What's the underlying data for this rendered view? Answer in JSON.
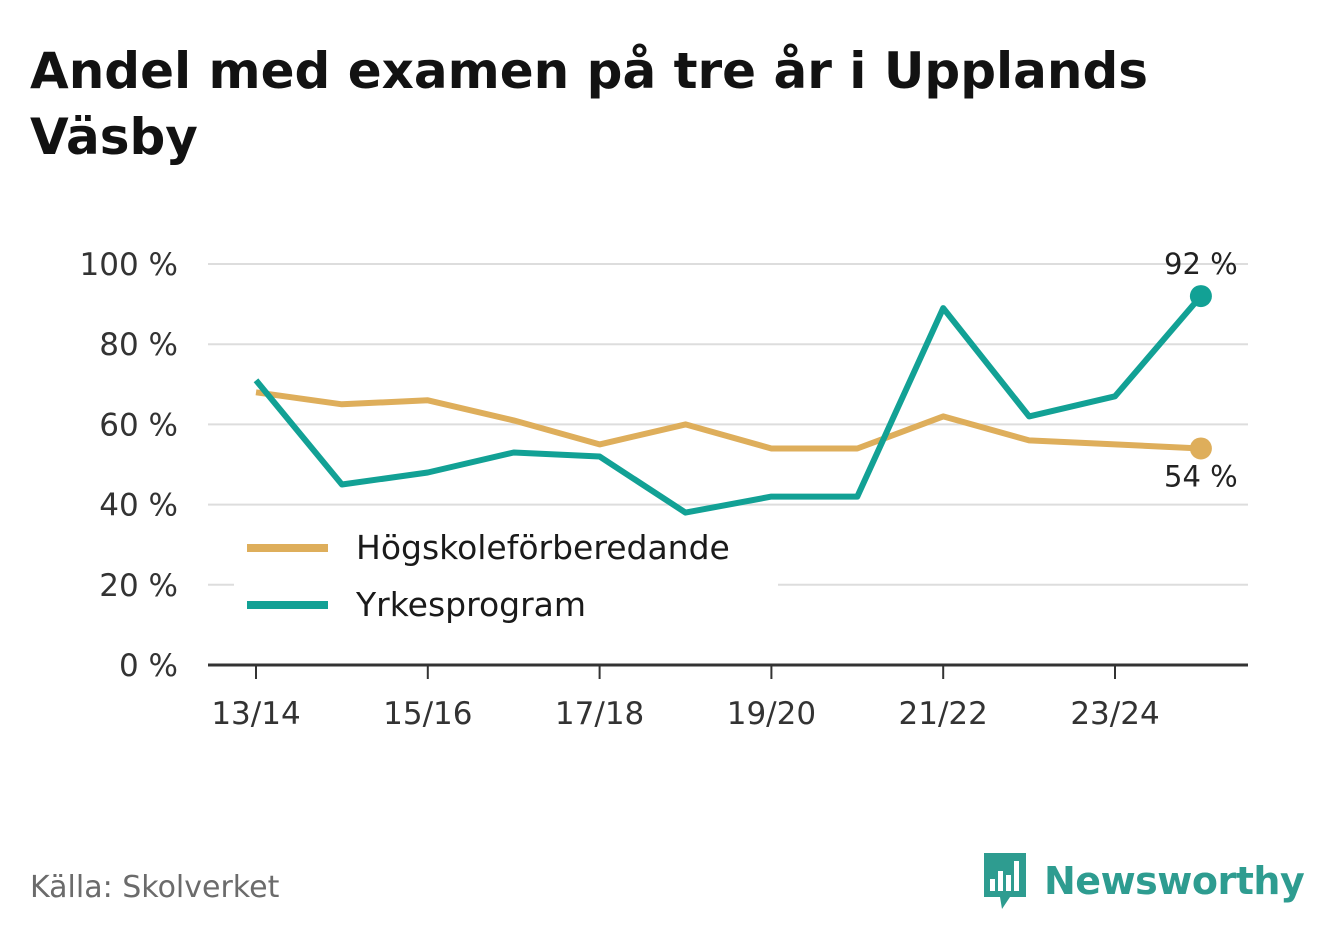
{
  "title": "Andel med examen på tre år i Upplands Väsby",
  "source": "Källa: Skolverket",
  "brand": {
    "name": "Newsworthy",
    "icon": "newsworthy-logo-icon",
    "color": "#2e9c90"
  },
  "chart_data": {
    "type": "line",
    "title": "Andel med examen på tre år i Upplands Väsby",
    "xlabel": "",
    "ylabel": "",
    "ylim": [
      0,
      100
    ],
    "y_ticks": [
      0,
      20,
      40,
      60,
      80,
      100
    ],
    "y_tick_labels": [
      "0 %",
      "20 %",
      "40 %",
      "60 %",
      "80 %",
      "100 %"
    ],
    "categories": [
      "13/14",
      "14/15",
      "15/16",
      "16/17",
      "17/18",
      "18/19",
      "19/20",
      "20/21",
      "21/22",
      "22/23",
      "23/24",
      "24/25"
    ],
    "x_tick_labels": [
      "13/14",
      "",
      "15/16",
      "",
      "17/18",
      "",
      "19/20",
      "",
      "21/22",
      "",
      "23/24",
      ""
    ],
    "grid": true,
    "legend_position": "bottom-left",
    "series": [
      {
        "name": "Högskoleförberedande",
        "color": "#deae5b",
        "values": [
          68,
          65,
          66,
          61,
          55,
          60,
          54,
          54,
          62,
          56,
          55,
          54
        ],
        "end_label": "54 %"
      },
      {
        "name": "Yrkesprogram",
        "color": "#12a195",
        "values": [
          71,
          45,
          48,
          53,
          52,
          38,
          42,
          42,
          89,
          62,
          67,
          92
        ],
        "end_label": "92 %"
      }
    ]
  }
}
